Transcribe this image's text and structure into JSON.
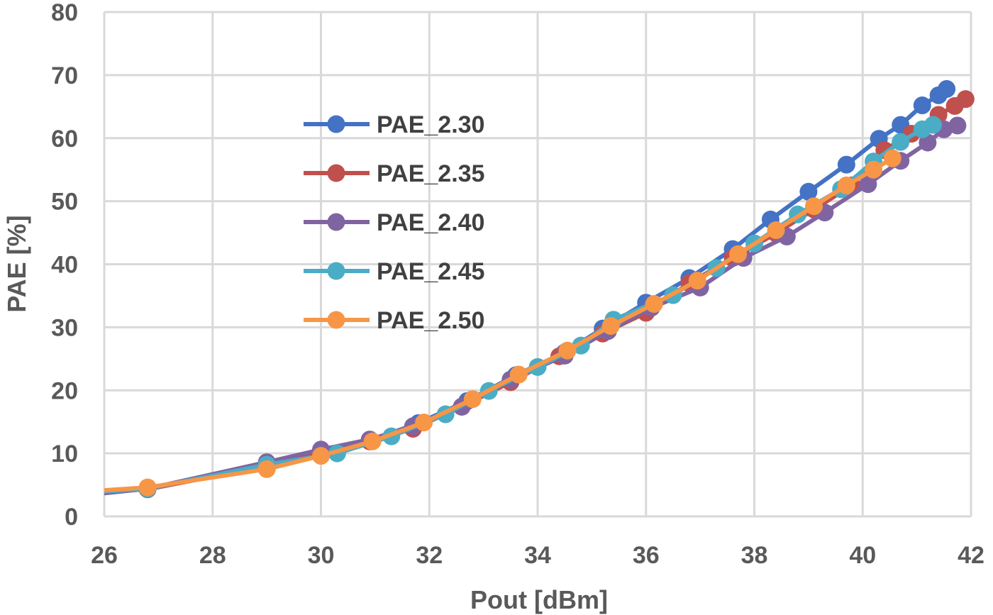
{
  "chart_data": {
    "type": "line",
    "xlabel": "Pout [dBm]",
    "ylabel": "PAE [%]",
    "xlim": [
      26,
      42
    ],
    "ylim": [
      0,
      80
    ],
    "xticks": [
      "26",
      "28",
      "30",
      "32",
      "34",
      "36",
      "38",
      "40",
      "42"
    ],
    "yticks": [
      "0",
      "10",
      "20",
      "30",
      "40",
      "50",
      "60",
      "70",
      "80"
    ],
    "grid": true,
    "legend_position": "upper-left-inside",
    "colors": {
      "PAE_2.30": "#4472c4",
      "PAE_2.35": "#c0504d",
      "PAE_2.40": "#8064a2",
      "PAE_2.45": "#4bacc6",
      "PAE_2.50": "#f79646"
    },
    "series": [
      {
        "name": "PAE_2.30",
        "x": [
          25.9,
          26.8,
          29.0,
          30.0,
          30.9,
          31.8,
          32.7,
          33.6,
          34.5,
          35.2,
          36.0,
          36.8,
          37.6,
          38.3,
          39.0,
          39.7,
          40.3,
          40.7,
          41.1,
          41.4,
          41.55
        ],
        "y": [
          3.6,
          4.4,
          7.9,
          10.4,
          12.0,
          14.8,
          18.3,
          22.4,
          26.0,
          29.8,
          33.9,
          37.8,
          42.4,
          47.1,
          51.5,
          55.8,
          59.9,
          62.1,
          65.2,
          66.8,
          67.8
        ]
      },
      {
        "name": "PAE_2.35",
        "x": [
          25.9,
          26.8,
          29.0,
          30.0,
          30.9,
          31.7,
          32.6,
          33.5,
          34.4,
          35.2,
          36.0,
          36.8,
          37.6,
          38.4,
          39.1,
          39.8,
          40.4,
          40.9,
          41.4,
          41.7,
          41.9
        ],
        "y": [
          3.9,
          4.3,
          8.0,
          10.1,
          11.9,
          13.9,
          17.4,
          21.3,
          25.4,
          29.0,
          32.3,
          37.0,
          41.0,
          44.9,
          48.7,
          52.5,
          58.1,
          60.7,
          63.7,
          65.1,
          66.2
        ]
      },
      {
        "name": "PAE_2.40",
        "x": [
          25.9,
          26.8,
          29.0,
          30.0,
          30.9,
          31.7,
          32.6,
          33.5,
          34.5,
          35.3,
          36.1,
          37.0,
          37.8,
          38.6,
          39.3,
          40.1,
          40.7,
          41.2,
          41.5,
          41.75
        ],
        "y": [
          3.6,
          4.4,
          8.6,
          10.6,
          12.2,
          14.3,
          17.4,
          21.7,
          25.5,
          29.4,
          33.1,
          36.3,
          41.0,
          44.4,
          48.2,
          52.7,
          56.4,
          59.3,
          61.4,
          62.0
        ]
      },
      {
        "name": "PAE_2.45",
        "x": [
          25.9,
          26.8,
          29.0,
          30.3,
          31.3,
          32.3,
          33.1,
          34.0,
          34.8,
          35.4,
          36.5,
          37.3,
          38.0,
          38.8,
          39.6,
          40.2,
          40.7,
          41.1,
          41.3
        ],
        "y": [
          3.9,
          4.4,
          8.2,
          10.0,
          12.7,
          16.2,
          19.9,
          23.7,
          27.1,
          31.2,
          35.1,
          39.4,
          43.3,
          47.9,
          51.9,
          56.3,
          59.4,
          61.4,
          62.1
        ]
      },
      {
        "name": "PAE_2.50",
        "x": [
          25.9,
          26.8,
          29.0,
          30.0,
          30.95,
          31.9,
          32.8,
          33.65,
          34.55,
          35.35,
          36.15,
          36.95,
          37.7,
          38.4,
          39.1,
          39.7,
          40.2,
          40.55
        ],
        "y": [
          4.1,
          4.6,
          7.5,
          9.6,
          11.9,
          14.9,
          18.6,
          22.5,
          26.3,
          30.2,
          33.7,
          37.4,
          41.6,
          45.4,
          49.2,
          52.5,
          55.0,
          56.8
        ]
      }
    ]
  }
}
